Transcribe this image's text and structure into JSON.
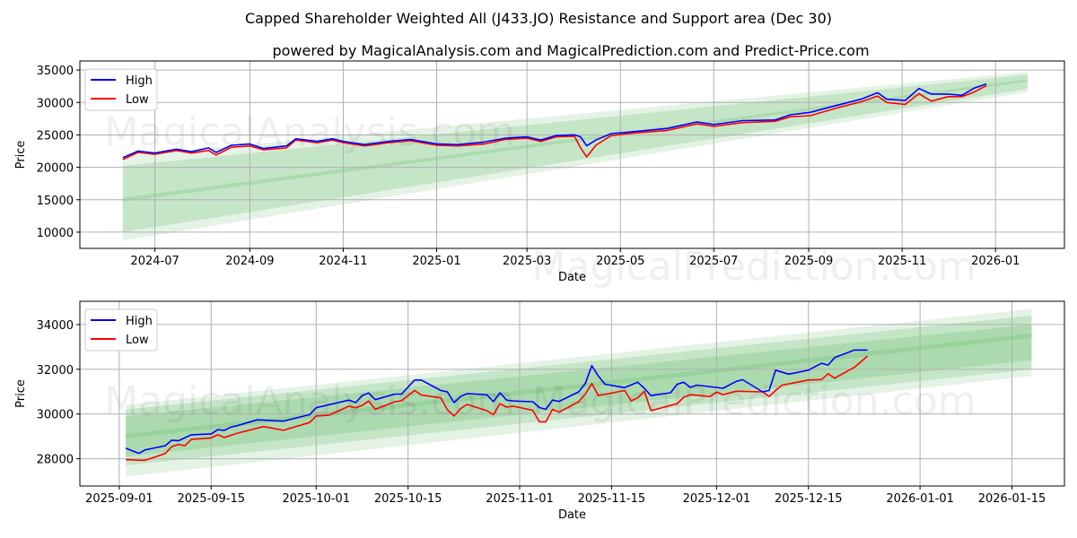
{
  "title": "Capped Shareholder Weighted All (J433.JO) Resistance and Support area (Dec 30)",
  "subtitle": "powered by MagicalAnalysis.com and MagicalPrediction.com and Predict-Price.com",
  "watermarks": [
    "MagicalAnalysis.com",
    "MagicalPrediction.com"
  ],
  "colors": {
    "high": "#0000ff",
    "low": "#ff0000",
    "band": "#4caf50"
  },
  "chart_data": [
    {
      "type": "line",
      "xlabel": "Date",
      "ylabel": "Price",
      "ylim": [
        7500,
        36400
      ],
      "xlim": [
        "2024-05-13",
        "2026-02-15"
      ],
      "grid": true,
      "legend": {
        "placement": "top-left",
        "entries": [
          "High",
          "Low"
        ]
      },
      "yticks": [
        10000,
        15000,
        20000,
        25000,
        30000,
        35000
      ],
      "ytick_labels": [
        "10000",
        "15000",
        "20000",
        "25000",
        "30000",
        "35000"
      ],
      "xticks": [
        "2024-07-01",
        "2024-09-01",
        "2024-11-01",
        "2025-01-01",
        "2025-03-01",
        "2025-05-01",
        "2025-07-01",
        "2025-09-01",
        "2025-11-01",
        "2026-01-01"
      ],
      "xtick_labels": [
        "2024-07",
        "2024-09",
        "2024-11",
        "2025-01",
        "2025-03",
        "2025-05",
        "2025-07",
        "2025-09",
        "2025-11",
        "2026-01"
      ],
      "bands": [
        {
          "start": "2024-06-10",
          "end": "2026-01-22",
          "lower": [
            8700,
            31600
          ],
          "upper": [
            21700,
            34700
          ]
        },
        {
          "start": "2024-06-10",
          "end": "2026-01-22",
          "lower": [
            10000,
            32100
          ],
          "upper": [
            20200,
            34300
          ]
        },
        {
          "start": "2024-06-10",
          "end": "2026-01-22",
          "lower": [
            14700,
            33200
          ],
          "upper": [
            15300,
            33600
          ]
        }
      ],
      "x": [
        "2024-06-10",
        "2024-06-20",
        "2024-07-01",
        "2024-07-15",
        "2024-07-25",
        "2024-08-05",
        "2024-08-10",
        "2024-08-20",
        "2024-09-01",
        "2024-09-10",
        "2024-09-25",
        "2024-10-01",
        "2024-10-15",
        "2024-10-25",
        "2024-11-01",
        "2024-11-15",
        "2024-12-01",
        "2024-12-15",
        "2025-01-01",
        "2025-01-15",
        "2025-02-01",
        "2025-02-15",
        "2025-03-01",
        "2025-03-10",
        "2025-03-20",
        "2025-04-01",
        "2025-04-05",
        "2025-04-09",
        "2025-04-15",
        "2025-04-25",
        "2025-05-10",
        "2025-06-01",
        "2025-06-20",
        "2025-07-01",
        "2025-07-20",
        "2025-08-10",
        "2025-08-20",
        "2025-09-02",
        "2025-09-20",
        "2025-10-05",
        "2025-10-16",
        "2025-10-22",
        "2025-11-03",
        "2025-11-12",
        "2025-11-20",
        "2025-12-01",
        "2025-12-10",
        "2025-12-18",
        "2025-12-26"
      ],
      "series": [
        {
          "name": "High",
          "values": [
            21500,
            22500,
            22200,
            22800,
            22400,
            23000,
            22300,
            23400,
            23600,
            22900,
            23300,
            24400,
            24000,
            24400,
            24000,
            23500,
            24000,
            24300,
            23600,
            23500,
            23900,
            24500,
            24700,
            24200,
            24900,
            25000,
            24700,
            23300,
            24200,
            25200,
            25500,
            26000,
            27000,
            26600,
            27200,
            27300,
            28100,
            28470,
            29600,
            30500,
            31500,
            30500,
            30300,
            32160,
            31300,
            31300,
            31100,
            32200,
            32860
          ]
        },
        {
          "name": "Low",
          "values": [
            21200,
            22300,
            22000,
            22600,
            22200,
            22600,
            21900,
            23100,
            23300,
            22700,
            23000,
            24200,
            23800,
            24200,
            23800,
            23300,
            23800,
            24100,
            23400,
            23300,
            23600,
            24300,
            24500,
            24000,
            24700,
            24800,
            23000,
            21600,
            23400,
            24900,
            25300,
            25700,
            26700,
            26300,
            26900,
            27100,
            27800,
            27960,
            29200,
            30100,
            31000,
            30000,
            29700,
            31360,
            30200,
            30900,
            30900,
            31600,
            32590
          ]
        }
      ]
    },
    {
      "type": "line",
      "xlabel": "Date",
      "ylabel": "Price",
      "ylim": [
        26780,
        35040
      ],
      "xlim": [
        "2025-08-26",
        "2026-01-23"
      ],
      "grid": true,
      "legend": {
        "placement": "top-left",
        "entries": [
          "High",
          "Low"
        ]
      },
      "yticks": [
        28000,
        30000,
        32000,
        34000
      ],
      "ytick_labels": [
        "28000",
        "30000",
        "32000",
        "34000"
      ],
      "xticks": [
        "2025-09-01",
        "2025-09-15",
        "2025-10-01",
        "2025-10-15",
        "2025-11-01",
        "2025-11-15",
        "2025-12-01",
        "2025-12-15",
        "2026-01-01",
        "2026-01-15"
      ],
      "xtick_labels": [
        "2025-09-01",
        "2025-09-15",
        "2025-10-01",
        "2025-10-15",
        "2025-11-01",
        "2025-11-15",
        "2025-12-01",
        "2025-12-15",
        "2026-01-01",
        "2026-01-15"
      ],
      "bands": [
        {
          "start": "2025-09-02",
          "end": "2026-01-18",
          "lower": [
            27200,
            31700
          ],
          "upper": [
            30400,
            34700
          ]
        },
        {
          "start": "2025-09-02",
          "end": "2026-01-18",
          "lower": [
            27700,
            32000
          ],
          "upper": [
            30200,
            34400
          ]
        },
        {
          "start": "2025-09-02",
          "end": "2026-01-18",
          "lower": [
            28100,
            32400
          ],
          "upper": [
            29900,
            34000
          ]
        },
        {
          "start": "2025-09-02",
          "end": "2026-01-18",
          "lower": [
            28900,
            33400
          ],
          "upper": [
            29100,
            33600
          ]
        }
      ],
      "high": {
        "x": [
          "2025-09-02",
          "2025-09-04",
          "2025-09-05",
          "2025-09-08",
          "2025-09-09",
          "2025-09-10",
          "2025-09-12",
          "2025-09-15",
          "2025-09-16",
          "2025-09-17",
          "2025-09-18",
          "2025-09-19",
          "2025-09-22",
          "2025-09-26",
          "2025-09-30",
          "2025-10-01",
          "2025-10-06",
          "2025-10-07",
          "2025-10-08",
          "2025-10-09",
          "2025-10-10",
          "2025-10-13",
          "2025-10-14",
          "2025-10-16",
          "2025-10-17",
          "2025-10-20",
          "2025-10-21",
          "2025-10-22",
          "2025-10-23",
          "2025-10-24",
          "2025-10-27",
          "2025-10-28",
          "2025-10-29",
          "2025-10-30",
          "2025-10-31",
          "2025-11-03",
          "2025-11-04",
          "2025-11-05",
          "2025-11-06",
          "2025-11-07",
          "2025-11-10",
          "2025-11-11",
          "2025-11-12",
          "2025-11-13",
          "2025-11-14",
          "2025-11-17",
          "2025-11-19",
          "2025-11-20",
          "2025-11-21",
          "2025-11-24",
          "2025-11-25",
          "2025-11-26",
          "2025-11-27",
          "2025-11-28",
          "2025-12-02",
          "2025-12-04",
          "2025-12-05",
          "2025-12-08",
          "2025-12-09",
          "2025-12-10",
          "2025-12-12",
          "2025-12-15",
          "2025-12-17",
          "2025-12-18",
          "2025-12-19",
          "2025-12-22",
          "2025-12-24"
        ],
        "values": [
          28470,
          28240,
          28400,
          28580,
          28830,
          28800,
          29070,
          29110,
          29300,
          29270,
          29410,
          29480,
          29740,
          29680,
          29970,
          30280,
          30620,
          30510,
          30820,
          30940,
          30640,
          30890,
          30890,
          31520,
          31520,
          31050,
          30990,
          30510,
          30780,
          30910,
          30860,
          30550,
          30950,
          30620,
          30580,
          30550,
          30290,
          30210,
          30620,
          30560,
          30990,
          31360,
          32160,
          31690,
          31330,
          31180,
          31420,
          31150,
          30820,
          30950,
          31330,
          31420,
          31190,
          31290,
          31150,
          31460,
          31530,
          30990,
          31050,
          31960,
          31780,
          31960,
          32270,
          32190,
          32520,
          32860,
          32860
        ]
      },
      "low": {
        "x": [
          "2025-09-02",
          "2025-09-04",
          "2025-09-05",
          "2025-09-08",
          "2025-09-09",
          "2025-09-10",
          "2025-09-11",
          "2025-09-12",
          "2025-09-15",
          "2025-09-16",
          "2025-09-17",
          "2025-09-19",
          "2025-09-23",
          "2025-09-26",
          "2025-09-30",
          "2025-10-01",
          "2025-10-03",
          "2025-10-06",
          "2025-10-07",
          "2025-10-08",
          "2025-10-09",
          "2025-10-10",
          "2025-10-13",
          "2025-10-14",
          "2025-10-16",
          "2025-10-17",
          "2025-10-20",
          "2025-10-21",
          "2025-10-22",
          "2025-10-23",
          "2025-10-24",
          "2025-10-27",
          "2025-10-28",
          "2025-10-29",
          "2025-10-30",
          "2025-10-31",
          "2025-11-03",
          "2025-11-04",
          "2025-11-05",
          "2025-11-06",
          "2025-11-07",
          "2025-11-10",
          "2025-11-11",
          "2025-11-12",
          "2025-11-13",
          "2025-11-17",
          "2025-11-18",
          "2025-11-19",
          "2025-11-20",
          "2025-11-21",
          "2025-11-25",
          "2025-11-26",
          "2025-11-27",
          "2025-11-30",
          "2025-12-01",
          "2025-12-02",
          "2025-12-04",
          "2025-12-08",
          "2025-12-09",
          "2025-12-10",
          "2025-12-11",
          "2025-12-15",
          "2025-12-17",
          "2025-12-18",
          "2025-12-19",
          "2025-12-22",
          "2025-12-24"
        ],
        "values": [
          27960,
          27930,
          27930,
          28230,
          28540,
          28640,
          28580,
          28870,
          28930,
          29070,
          28950,
          29140,
          29440,
          29270,
          29620,
          29910,
          29950,
          30350,
          30280,
          30380,
          30580,
          30210,
          30550,
          30590,
          31050,
          30850,
          30720,
          30190,
          29910,
          30240,
          30430,
          30150,
          29970,
          30460,
          30310,
          30350,
          30170,
          29650,
          29650,
          30210,
          30080,
          30550,
          30890,
          31360,
          30820,
          31050,
          30590,
          30720,
          31020,
          30150,
          30460,
          30750,
          30860,
          30780,
          30980,
          30860,
          31020,
          30990,
          30780,
          31050,
          31290,
          31520,
          31540,
          31800,
          31600,
          32090,
          32590
        ]
      }
    }
  ]
}
